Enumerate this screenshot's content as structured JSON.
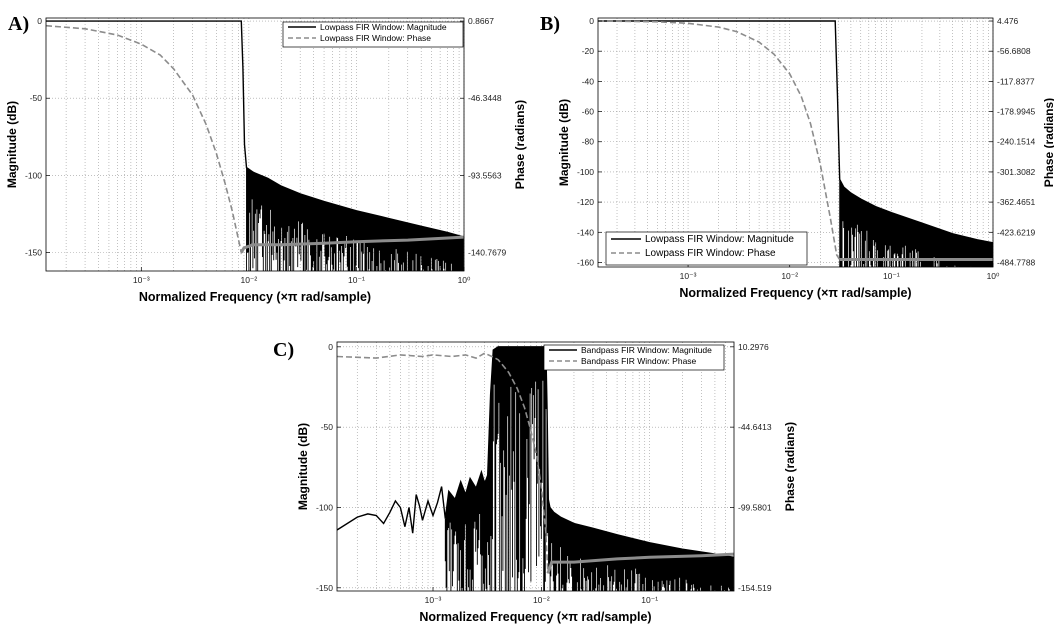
{
  "chart_data": [
    {
      "id": "A",
      "panel_label": "A)",
      "type": "line",
      "title": "",
      "xlabel": "Normalized Frequency (×π rad/sample)",
      "ylabel": "Magnitude (dB)",
      "ylabel_right": "Phase (radians)",
      "x_scale": "log",
      "xlim": [
        0.00013,
        1
      ],
      "x_ticks": [
        0.001,
        0.01,
        0.1,
        1
      ],
      "x_tick_labels": [
        "10⁻³",
        "10⁻²",
        "10⁻¹",
        "10⁰"
      ],
      "ylim": [
        -162,
        2
      ],
      "y_ticks": [
        0,
        -50,
        -100,
        -150
      ],
      "y_tick_labels": [
        "0",
        "-50",
        "-100",
        "-150"
      ],
      "y2_tick_labels": [
        "0.8667",
        "-46.3448",
        "-93.5563",
        "-140.7679"
      ],
      "grid": true,
      "legend_position": "top-right",
      "series": [
        {
          "name": "Lowpass FIR Window: Magnitude",
          "color": "#000000",
          "dash": "solid",
          "x": [
            0.00013,
            0.001,
            0.005,
            0.0085,
            0.0088,
            0.0091,
            0.0095,
            0.011,
            0.015,
            0.02,
            0.03,
            0.05,
            0.1,
            0.2,
            0.4,
            0.7,
            1
          ],
          "y": [
            0,
            0,
            0,
            0,
            -30,
            -80,
            -95,
            -98,
            -102,
            -107,
            -112,
            -117,
            -123,
            -128,
            -133,
            -137,
            -140
          ],
          "ripple_floor": [
            -140,
            -162
          ]
        },
        {
          "name": "Lowpass FIR Window: Phase",
          "color": "#8c8c8c",
          "dash": "dashed",
          "x": [
            0.00013,
            0.0003,
            0.0006,
            0.001,
            0.0015,
            0.002,
            0.003,
            0.004,
            0.005,
            0.006,
            0.007,
            0.0085,
            0.009,
            0.011,
            0.02,
            0.05,
            0.1,
            0.3,
            1
          ],
          "y": [
            -3,
            -5,
            -9,
            -15,
            -22,
            -31,
            -48,
            -67,
            -86,
            -105,
            -123,
            -150,
            -147,
            -145,
            -145,
            -144,
            -143,
            -142,
            -140
          ]
        }
      ]
    },
    {
      "id": "B",
      "panel_label": "B)",
      "type": "line",
      "title": "",
      "xlabel": "Normalized Frequency (×π rad/sample)",
      "ylabel": "Magnitude (dB)",
      "ylabel_right": "Phase (radians)",
      "x_scale": "log",
      "xlim": [
        0.00013,
        1
      ],
      "x_ticks": [
        0.001,
        0.01,
        0.1,
        1
      ],
      "x_tick_labels": [
        "10⁻³",
        "10⁻²",
        "10⁻¹",
        "10⁰"
      ],
      "ylim": [
        -163,
        2
      ],
      "y_ticks": [
        0,
        -20,
        -40,
        -60,
        -80,
        -100,
        -120,
        -140,
        -160
      ],
      "y_tick_labels": [
        "0",
        "-20",
        "-40",
        "-60",
        "-80",
        "-100",
        "-120",
        "-140",
        "-160"
      ],
      "y2_tick_labels": [
        "4.476",
        "-56.6808",
        "-117.8377",
        "-178.9945",
        "-240.1514",
        "-301.3082",
        "-362.4651",
        "-423.6219",
        "-484.7788"
      ],
      "grid": true,
      "legend_position": "bottom-left",
      "series": [
        {
          "name": "Lowpass FIR Window: Magnitude",
          "color": "#000000",
          "dash": "solid",
          "x": [
            0.00013,
            0.001,
            0.01,
            0.028,
            0.0295,
            0.031,
            0.034,
            0.04,
            0.05,
            0.07,
            0.1,
            0.2,
            0.4,
            0.7,
            1
          ],
          "y": [
            0,
            0,
            0,
            0,
            -50,
            -105,
            -110,
            -114,
            -118,
            -123,
            -127,
            -134,
            -141,
            -145,
            -147
          ],
          "ripple_floor": [
            -145,
            -163
          ]
        },
        {
          "name": "Lowpass FIR Window: Phase",
          "color": "#8c8c8c",
          "dash": "dashed",
          "x": [
            0.00013,
            0.0005,
            0.001,
            0.002,
            0.003,
            0.005,
            0.007,
            0.01,
            0.013,
            0.016,
            0.02,
            0.025,
            0.029,
            0.031,
            0.05,
            0.1,
            0.3,
            1
          ],
          "y": [
            0,
            -0.5,
            -1.5,
            -4,
            -7,
            -14,
            -22,
            -35,
            -50,
            -68,
            -95,
            -130,
            -155,
            -158,
            -158,
            -158,
            -158,
            -158
          ]
        }
      ]
    },
    {
      "id": "C",
      "panel_label": "C)",
      "type": "line",
      "title": "",
      "xlabel": "Normalized Frequency (×π rad/sample)",
      "ylabel": "Magnitude (dB)",
      "ylabel_right": "Phase (radians)",
      "x_scale": "log",
      "xlim": [
        0.00013,
        0.6
      ],
      "x_ticks": [
        0.001,
        0.01,
        0.1
      ],
      "x_tick_labels": [
        "10⁻³",
        "10⁻²",
        "10⁻¹"
      ],
      "ylim": [
        -152,
        3
      ],
      "y_ticks": [
        0,
        -50,
        -100,
        -150
      ],
      "y_tick_labels": [
        "0",
        "-50",
        "-100",
        "-150"
      ],
      "y2_tick_labels": [
        "10.2976",
        "-44.6413",
        "-99.5801",
        "-154.519"
      ],
      "grid": true,
      "legend_position": "top-right",
      "series": [
        {
          "name": "Bandpass FIR Window: Magnitude",
          "color": "#000000",
          "dash": "solid",
          "x": [
            0.00013,
            0.0002,
            0.00025,
            0.0003,
            0.00035,
            0.0004,
            0.00045,
            0.0005,
            0.00055,
            0.0006,
            0.00065,
            0.0007,
            0.00075,
            0.0008,
            0.0009,
            0.001,
            0.0011,
            0.0012,
            0.0013,
            0.0014,
            0.0016,
            0.0018,
            0.002,
            0.0022,
            0.0025,
            0.0028,
            0.003,
            0.0032,
            0.0034,
            0.0036,
            0.004,
            0.006,
            0.008,
            0.0105,
            0.011,
            0.0113,
            0.0116,
            0.012,
            0.013,
            0.015,
            0.02,
            0.03,
            0.05,
            0.1,
            0.2,
            0.4,
            0.6
          ],
          "y": [
            -114,
            -106,
            -104,
            -105,
            -110,
            -103,
            -96,
            -100,
            -112,
            -100,
            -116,
            -92,
            -99,
            -108,
            -96,
            -105,
            -97,
            -87,
            -107,
            -90,
            -95,
            -84,
            -92,
            -82,
            -88,
            -78,
            -85,
            -80,
            -30,
            -2,
            0,
            0,
            0,
            0,
            0,
            -40,
            -95,
            -100,
            -103,
            -106,
            -110,
            -113,
            -117,
            -122,
            -126,
            -129,
            -131
          ],
          "ripple_floor": [
            -128,
            -152
          ]
        },
        {
          "name": "Bandpass FIR Window: Phase",
          "color": "#8c8c8c",
          "dash": "dashed",
          "x": [
            0.00013,
            0.0003,
            0.0005,
            0.0008,
            0.001,
            0.0015,
            0.002,
            0.0025,
            0.003,
            0.0035,
            0.004,
            0.005,
            0.006,
            0.007,
            0.008,
            0.009,
            0.01,
            0.011,
            0.0115,
            0.0125,
            0.02,
            0.05,
            0.1,
            0.3,
            0.6
          ],
          "y": [
            -6,
            -7,
            -5,
            -6,
            -5,
            -6,
            -5,
            -7,
            -4,
            -6,
            -8,
            -16,
            -26,
            -38,
            -52,
            -67,
            -87,
            -115,
            -141,
            -134,
            -134,
            -132,
            -131,
            -130,
            -129
          ]
        }
      ]
    }
  ]
}
